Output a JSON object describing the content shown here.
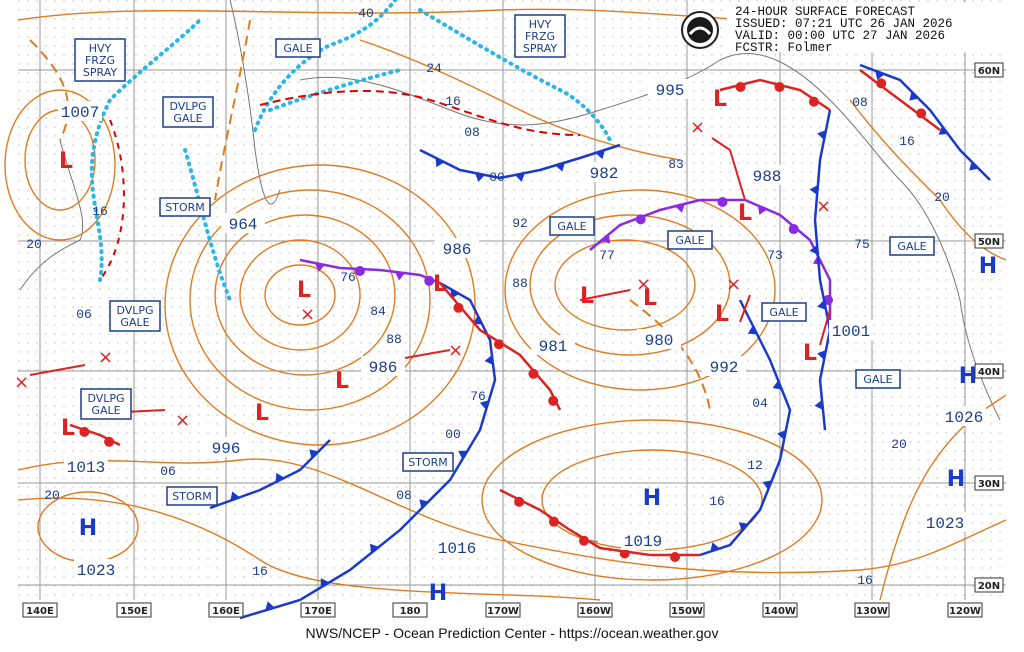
{
  "header": {
    "lines": [
      "24-HOUR SURFACE FORECAST",
      "ISSUED: 07:21 UTC 26 JAN 2026",
      "VALID:  00:00 UTC 27 JAN 2026",
      "FCSTR:  Folmer"
    ]
  },
  "footer": "NWS/NCEP - Ocean Prediction Center - https://ocean.weather.gov",
  "longitudes": [
    "140E",
    "150E",
    "160E",
    "170E",
    "180",
    "170W",
    "160W",
    "150W",
    "140W",
    "130W",
    "120W"
  ],
  "latitudes": [
    "60N",
    "50N",
    "40N",
    "30N",
    "20N"
  ],
  "isobar_labels": [
    "1007",
    "964",
    "76",
    "84",
    "88",
    "986",
    "986",
    "76",
    "00",
    "981",
    "92",
    "88",
    "77",
    "980",
    "83",
    "982",
    "995",
    "988",
    "73",
    "75",
    "1001",
    "992",
    "04",
    "12",
    "16",
    "1019",
    "1016",
    "08",
    "996",
    "06",
    "1013",
    "06",
    "20",
    "1023",
    "16",
    "1026",
    "20",
    "1023",
    "16",
    "20",
    "16",
    "08",
    "24",
    "16",
    "08",
    "00",
    "40",
    "20",
    "16"
  ],
  "warnings": [
    {
      "lines": [
        "HVY",
        "FRZG",
        "SPRAY"
      ]
    },
    {
      "lines": [
        "HVY",
        "FRZG",
        "SPRAY"
      ]
    },
    {
      "lines": [
        "GALE"
      ]
    },
    {
      "lines": [
        "DVLPG",
        "GALE"
      ]
    },
    {
      "lines": [
        "STORM"
      ]
    },
    {
      "lines": [
        "GALE"
      ]
    },
    {
      "lines": [
        "GALE"
      ]
    },
    {
      "lines": [
        "GALE"
      ]
    },
    {
      "lines": [
        "GALE"
      ]
    },
    {
      "lines": [
        "GALE"
      ]
    },
    {
      "lines": [
        "DVLPG",
        "GALE"
      ]
    },
    {
      "lines": [
        "DVLPG",
        "GALE"
      ]
    },
    {
      "lines": [
        "STORM"
      ]
    },
    {
      "lines": [
        "STORM"
      ]
    }
  ],
  "highs": [
    "H",
    "H",
    "H",
    "H",
    "H",
    "H"
  ],
  "lows": [
    "L",
    "L",
    "L",
    "L",
    "L",
    "L",
    "L",
    "L",
    "L",
    "L",
    "L",
    "L"
  ]
}
